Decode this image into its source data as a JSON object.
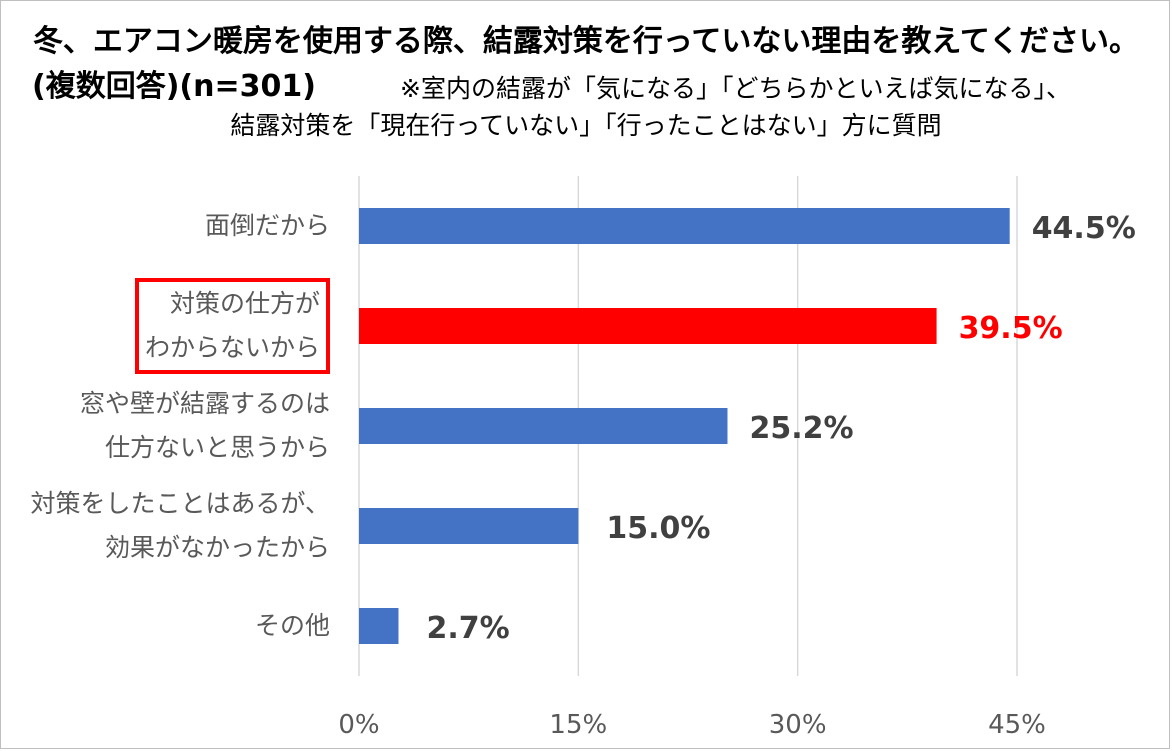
{
  "title": {
    "line1": "冬、エアコン暖房を使用する際、結露対策を行っていない理由を教えてください。",
    "line2_bold": "(複数回答)(n=301)",
    "line2_note": "※室内の結露が「気になる」「どちらかといえば気になる」、",
    "line3_note": "結露対策を「現在行っていない」「行ったことはない」方に質問"
  },
  "chart_data": {
    "type": "bar",
    "orientation": "horizontal",
    "categories": [
      [
        "面倒だから"
      ],
      [
        "対策の仕方が",
        "わからないから"
      ],
      [
        "窓や壁が結露するのは",
        "仕方ないと思うから"
      ],
      [
        "対策をしたことはあるが、",
        "効果がなかったから"
      ],
      [
        "その他"
      ]
    ],
    "values": [
      44.5,
      39.5,
      25.2,
      15.0,
      2.7
    ],
    "data_labels": [
      "44.5%",
      "39.5%",
      "25.2%",
      "15.0%",
      "2.7%"
    ],
    "highlight_index": 1,
    "xlim": [
      0,
      45
    ],
    "ticks": [
      0,
      15,
      30,
      45
    ],
    "tick_labels": [
      "0%",
      "15%",
      "30%",
      "45%"
    ],
    "grid": true,
    "colors": {
      "bar": "#4472c4",
      "highlight": "#ff0000",
      "label": "#404040",
      "grid": "#d9d9d9"
    }
  }
}
